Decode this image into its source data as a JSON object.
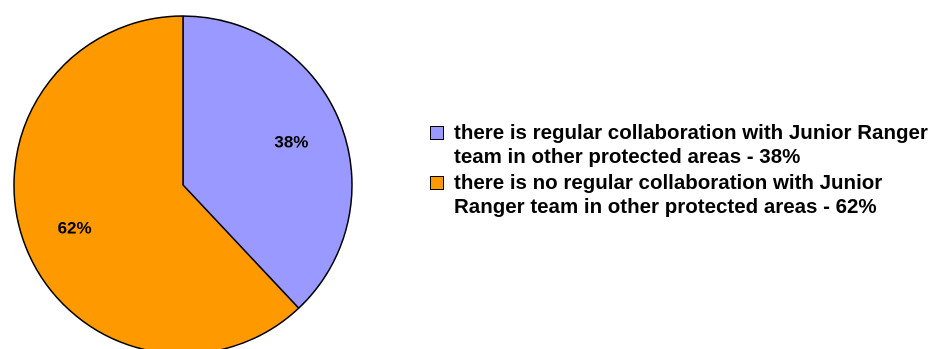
{
  "chart_data": {
    "type": "pie",
    "slices": [
      {
        "label": "there is regular collaboration with Junior Ranger team in other protected areas - 38%",
        "value": 38,
        "value_label": "38%",
        "color": "#9999ff"
      },
      {
        "label": "there is no regular collaboration with Junior Ranger team in other protected areas - 62%",
        "value": 62,
        "value_label": "62%",
        "color": "#ff9900"
      }
    ],
    "start_angle": "12 o'clock",
    "direction": "clockwise",
    "legend_position": "right"
  }
}
